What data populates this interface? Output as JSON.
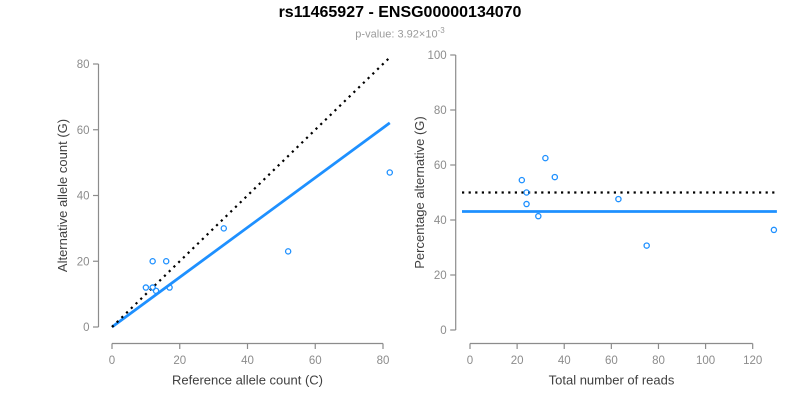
{
  "header": {
    "title": "rs11465927 - ENSG00000134070",
    "subtitle_prefix": "p-value: 3.92×10",
    "subtitle_exponent": "-3"
  },
  "colors": {
    "accent": "#1E90FF",
    "black": "#000000",
    "axis": "#8C8C8C",
    "tick_label": "#8C8C8C",
    "axis_title": "#404040",
    "title": "#000000",
    "subtitle": "#9B9B9B",
    "background": "#FFFFFF"
  },
  "chart_data": [
    {
      "name": "allele-counts-scatter",
      "type": "scatter",
      "xlabel": "Reference allele count (C)",
      "ylabel": "Alternative allele count (G)",
      "xticks": [
        0,
        20,
        40,
        60,
        80
      ],
      "yticks": [
        0,
        20,
        40,
        60,
        80
      ],
      "xlim": [
        0,
        82
      ],
      "ylim": [
        0,
        82
      ],
      "grid": false,
      "legend": null,
      "points": [
        [
          10,
          12
        ],
        [
          12,
          12
        ],
        [
          13,
          11
        ],
        [
          17,
          12
        ],
        [
          12,
          20
        ],
        [
          16,
          20
        ],
        [
          33,
          30
        ],
        [
          52,
          23
        ],
        [
          82,
          47
        ]
      ],
      "lines": [
        {
          "name": "fitted-allelic-ratio-line",
          "style": "solid",
          "color_key": "accent",
          "slope": 0.757,
          "intercept": 0
        },
        {
          "name": "identity-line",
          "style": "dotted",
          "color_key": "black",
          "slope": 1,
          "intercept": 0
        }
      ]
    },
    {
      "name": "percentage-vs-reads-scatter",
      "type": "scatter",
      "xlabel": "Total number of reads",
      "ylabel": "Percentage alternative (G)",
      "xticks": [
        0,
        20,
        40,
        60,
        80,
        100,
        120
      ],
      "yticks": [
        0,
        20,
        40,
        60,
        80,
        100
      ],
      "xlim": [
        0,
        129
      ],
      "ylim": [
        0,
        100
      ],
      "grid": false,
      "legend": null,
      "points": [
        [
          22,
          54.5
        ],
        [
          24,
          50.0
        ],
        [
          24,
          45.8
        ],
        [
          29,
          41.4
        ],
        [
          32,
          62.5
        ],
        [
          36,
          55.6
        ],
        [
          63,
          47.6
        ],
        [
          75,
          30.7
        ],
        [
          129,
          36.4
        ]
      ],
      "lines": [
        {
          "name": "fitted-percentage-line",
          "style": "solid",
          "color_key": "accent",
          "y": 43.1
        },
        {
          "name": "fifty-percent-null-line",
          "style": "dotted",
          "color_key": "black",
          "y": 50
        }
      ]
    }
  ]
}
